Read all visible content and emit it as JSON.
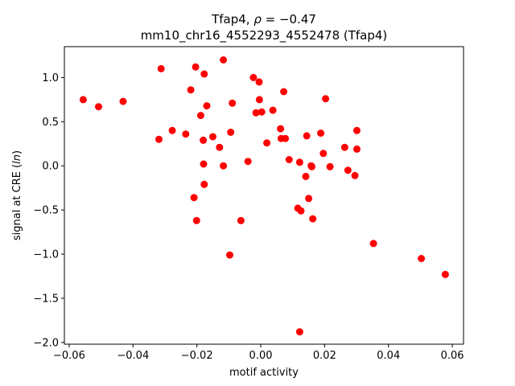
{
  "chart_data": {
    "type": "scatter",
    "title_line1_prefix": "Tfap4, ",
    "title_line1_rho": "ρ",
    "title_line1_value": " = −0.47",
    "title_line2": "mm10_chr16_4552293_4552478 (Tfap4)",
    "xlabel": "motif activity",
    "ylabel_prefix": "signal at CRE (",
    "ylabel_math": "ln",
    "ylabel_suffix": ")",
    "xlim": [
      -0.0615,
      0.0635
    ],
    "ylim": [
      -2.02,
      1.35
    ],
    "xticks": [
      -0.06,
      -0.04,
      -0.02,
      0.0,
      0.02,
      0.04,
      0.06
    ],
    "xtick_labels": [
      "−0.06",
      "−0.04",
      "−0.02",
      "0.00",
      "0.02",
      "0.04",
      "0.06"
    ],
    "yticks": [
      -2.0,
      -1.5,
      -1.0,
      -0.5,
      0.0,
      0.5,
      1.0
    ],
    "ytick_labels": [
      "−2.0",
      "−1.5",
      "−1.0",
      "−0.5",
      "0.0",
      "0.5",
      "1.0"
    ],
    "grid": false,
    "marker_color": "#ff0000",
    "points": [
      {
        "x": -0.0556,
        "y": 0.75
      },
      {
        "x": -0.0508,
        "y": 0.67
      },
      {
        "x": -0.0431,
        "y": 0.73
      },
      {
        "x": -0.0312,
        "y": 1.1
      },
      {
        "x": -0.0319,
        "y": 0.3
      },
      {
        "x": -0.0277,
        "y": 0.4
      },
      {
        "x": -0.0235,
        "y": 0.36
      },
      {
        "x": -0.0219,
        "y": 0.86
      },
      {
        "x": -0.0204,
        "y": 1.12
      },
      {
        "x": -0.0177,
        "y": 1.04
      },
      {
        "x": -0.0117,
        "y": 1.2
      },
      {
        "x": -0.0188,
        "y": 0.57
      },
      {
        "x": -0.0169,
        "y": 0.68
      },
      {
        "x": -0.018,
        "y": 0.29
      },
      {
        "x": -0.015,
        "y": 0.33
      },
      {
        "x": -0.0129,
        "y": 0.21
      },
      {
        "x": -0.0089,
        "y": 0.71
      },
      {
        "x": -0.0094,
        "y": 0.38
      },
      {
        "x": -0.0179,
        "y": 0.02
      },
      {
        "x": -0.0117,
        "y": 0.0
      },
      {
        "x": -0.0177,
        "y": -0.21
      },
      {
        "x": -0.0209,
        "y": -0.36
      },
      {
        "x": -0.0201,
        "y": -0.62
      },
      {
        "x": -0.004,
        "y": 0.05
      },
      {
        "x": -0.0062,
        "y": -0.62
      },
      {
        "x": -0.0097,
        "y": -1.01
      },
      {
        "x": -0.0023,
        "y": 1.0
      },
      {
        "x": -0.0005,
        "y": 0.95
      },
      {
        "x": -0.0004,
        "y": 0.75
      },
      {
        "x": -0.0015,
        "y": 0.6
      },
      {
        "x": 0.0003,
        "y": 0.61
      },
      {
        "x": 0.0038,
        "y": 0.63
      },
      {
        "x": 0.0072,
        "y": 0.84
      },
      {
        "x": 0.0062,
        "y": 0.42
      },
      {
        "x": 0.0064,
        "y": 0.31
      },
      {
        "x": 0.0077,
        "y": 0.31
      },
      {
        "x": 0.0019,
        "y": 0.26
      },
      {
        "x": 0.0089,
        "y": 0.07
      },
      {
        "x": 0.0122,
        "y": 0.04
      },
      {
        "x": 0.0144,
        "y": 0.34
      },
      {
        "x": 0.0188,
        "y": 0.37
      },
      {
        "x": 0.0203,
        "y": 0.76
      },
      {
        "x": 0.0196,
        "y": 0.14
      },
      {
        "x": 0.0158,
        "y": 0.0
      },
      {
        "x": 0.016,
        "y": -0.01
      },
      {
        "x": 0.0141,
        "y": -0.12
      },
      {
        "x": 0.0217,
        "y": -0.01
      },
      {
        "x": 0.015,
        "y": -0.37
      },
      {
        "x": 0.0116,
        "y": -0.48
      },
      {
        "x": 0.0126,
        "y": -0.51
      },
      {
        "x": 0.0163,
        "y": -0.6
      },
      {
        "x": 0.0263,
        "y": 0.21
      },
      {
        "x": 0.0301,
        "y": 0.4
      },
      {
        "x": 0.0301,
        "y": 0.19
      },
      {
        "x": 0.0273,
        "y": -0.05
      },
      {
        "x": 0.0295,
        "y": -0.11
      },
      {
        "x": 0.0353,
        "y": -0.88
      },
      {
        "x": 0.0503,
        "y": -1.05
      },
      {
        "x": 0.0578,
        "y": -1.23
      },
      {
        "x": 0.0122,
        "y": -1.88
      }
    ]
  }
}
